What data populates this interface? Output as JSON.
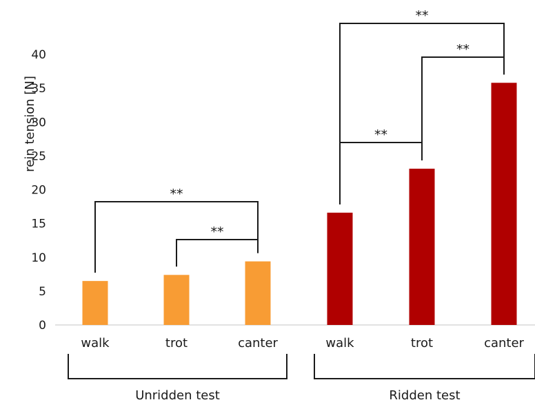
{
  "chart_data": {
    "type": "bar",
    "ylabel": "rein tension [N]",
    "ylim": [
      0,
      40
    ],
    "yticks": [
      0,
      5,
      10,
      15,
      20,
      25,
      30,
      35,
      40
    ],
    "grid": false,
    "groups": [
      {
        "name": "Unridden test",
        "color": "#f89c34",
        "categories": [
          "walk",
          "trot",
          "canter"
        ],
        "values": [
          6.5,
          7.4,
          9.4
        ]
      },
      {
        "name": "Ridden test",
        "color": "#b00000",
        "categories": [
          "walk",
          "trot",
          "canter"
        ],
        "values": [
          16.6,
          23.1,
          35.8
        ]
      }
    ],
    "significance": [
      {
        "group": 0,
        "from": 0,
        "to": 2,
        "label": "**"
      },
      {
        "group": 0,
        "from": 1,
        "to": 2,
        "label": "**"
      },
      {
        "group": 1,
        "from": 0,
        "to": 1,
        "label": "**"
      },
      {
        "group": 1,
        "from": 1,
        "to": 2,
        "label": "**"
      },
      {
        "group": 1,
        "from": 0,
        "to": 2,
        "label": "**"
      }
    ]
  }
}
